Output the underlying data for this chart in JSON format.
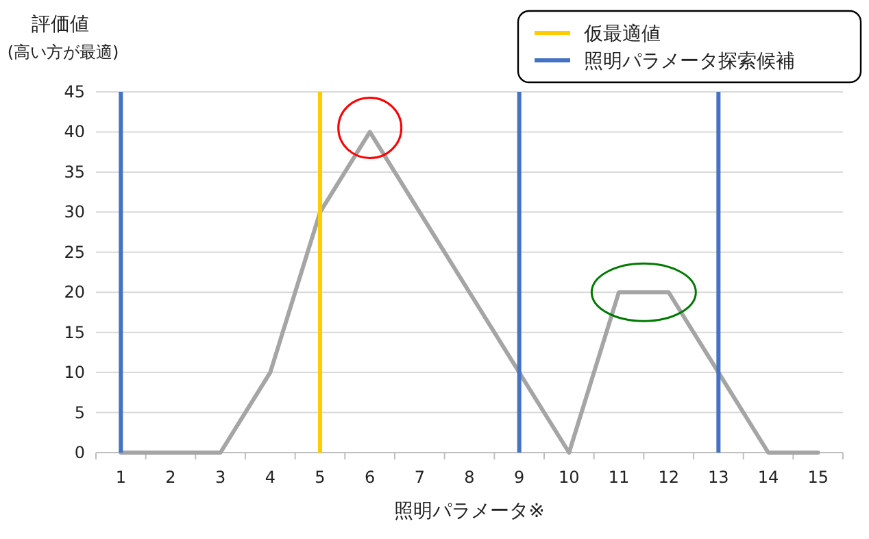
{
  "chart_data": {
    "type": "line",
    "xlabel": "照明パラメータ※",
    "ylabel": "評価値\n(高い方が最適)",
    "x": [
      1,
      2,
      3,
      4,
      5,
      6,
      7,
      8,
      9,
      10,
      11,
      12,
      13,
      14,
      15
    ],
    "series": [
      {
        "color": "#a5a5a5",
        "values": [
          0,
          0,
          0,
          10,
          30,
          40,
          30,
          20,
          10,
          0,
          20,
          20,
          10,
          0,
          0
        ]
      }
    ],
    "xlim": [
      0.5,
      15.5
    ],
    "xticks": [
      1,
      2,
      3,
      4,
      5,
      6,
      7,
      8,
      9,
      10,
      11,
      12,
      13,
      14,
      15
    ],
    "ylim": [
      0,
      45
    ],
    "yticks": [
      0,
      5,
      10,
      15,
      20,
      25,
      30,
      35,
      40,
      45
    ],
    "ref_lines": [
      {
        "axis": "x",
        "value": 5,
        "label": "仮最適値",
        "color": "#ffcc00"
      },
      {
        "axis": "x",
        "value": 1,
        "label": "照明パラメータ探索候補",
        "color": "#4472c4"
      },
      {
        "axis": "x",
        "value": 9,
        "color": "#4472c4"
      },
      {
        "axis": "x",
        "value": 13,
        "color": "#4472c4"
      }
    ],
    "grid": "y",
    "legend": "top right",
    "marker": "none",
    "line_style": "solid"
  }
}
